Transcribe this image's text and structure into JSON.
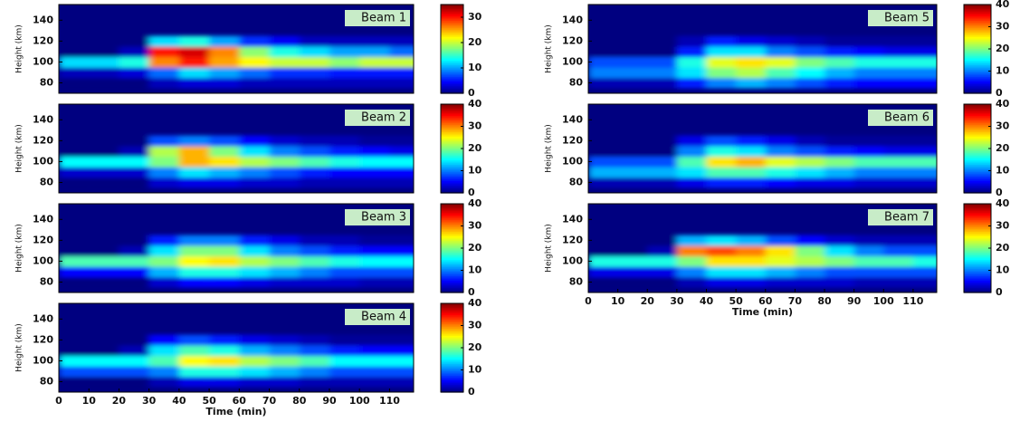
{
  "chart_data": [
    {
      "type": "contour",
      "title": "Beam 1",
      "ylabel": "Height (km)",
      "colormap": "jet",
      "x": [
        5,
        15,
        25,
        35,
        45,
        55,
        65,
        75,
        85,
        95,
        105,
        115
      ],
      "y": [
        80,
        90,
        100,
        110,
        120
      ],
      "z": [
        [
          0,
          0,
          0,
          2,
          3,
          3,
          2,
          2,
          2,
          2,
          2,
          2
        ],
        [
          2,
          2,
          3,
          8,
          12,
          10,
          8,
          6,
          6,
          5,
          5,
          5
        ],
        [
          12,
          12,
          14,
          26,
          30,
          25,
          22,
          20,
          20,
          18,
          20,
          20
        ],
        [
          0,
          0,
          2,
          30,
          32,
          26,
          18,
          14,
          12,
          10,
          10,
          8
        ],
        [
          0,
          0,
          0,
          12,
          14,
          10,
          6,
          4,
          2,
          2,
          2,
          2
        ]
      ],
      "xlim": [
        0,
        118
      ],
      "ylim": [
        70,
        155
      ],
      "yticks": [
        80,
        100,
        120,
        140
      ],
      "clim": [
        0,
        35
      ],
      "cticks": [
        0,
        10,
        20,
        30
      ]
    },
    {
      "type": "contour",
      "title": "Beam 2",
      "ylabel": "Height (km)",
      "colormap": "jet",
      "x": [
        5,
        15,
        25,
        35,
        45,
        55,
        65,
        75,
        85,
        95,
        105,
        115
      ],
      "y": [
        80,
        90,
        100,
        110,
        120
      ],
      "z": [
        [
          0,
          0,
          0,
          3,
          4,
          4,
          3,
          3,
          2,
          2,
          2,
          2
        ],
        [
          3,
          3,
          3,
          10,
          14,
          12,
          10,
          8,
          6,
          5,
          5,
          5
        ],
        [
          15,
          15,
          15,
          20,
          28,
          26,
          22,
          20,
          18,
          16,
          15,
          15
        ],
        [
          0,
          0,
          2,
          22,
          28,
          20,
          14,
          10,
          8,
          6,
          5,
          4
        ],
        [
          0,
          0,
          0,
          8,
          10,
          8,
          5,
          3,
          2,
          2,
          1,
          1
        ]
      ],
      "xlim": [
        0,
        118
      ],
      "ylim": [
        70,
        155
      ],
      "yticks": [
        80,
        100,
        120,
        140
      ],
      "clim": [
        0,
        40
      ],
      "cticks": [
        0,
        10,
        20,
        30,
        40
      ]
    },
    {
      "type": "contour",
      "title": "Beam 3",
      "ylabel": "Height (km)",
      "colormap": "jet",
      "x": [
        5,
        15,
        25,
        35,
        45,
        55,
        65,
        75,
        85,
        95,
        105,
        115
      ],
      "y": [
        80,
        90,
        100,
        110,
        120
      ],
      "z": [
        [
          0,
          0,
          0,
          3,
          5,
          5,
          4,
          3,
          3,
          3,
          2,
          2
        ],
        [
          5,
          5,
          5,
          12,
          16,
          16,
          14,
          12,
          10,
          8,
          8,
          8
        ],
        [
          18,
          18,
          18,
          20,
          25,
          26,
          22,
          20,
          18,
          16,
          15,
          15
        ],
        [
          0,
          0,
          2,
          14,
          20,
          20,
          14,
          10,
          8,
          6,
          5,
          5
        ],
        [
          0,
          0,
          0,
          6,
          10,
          10,
          6,
          4,
          2,
          2,
          1,
          1
        ]
      ],
      "xlim": [
        0,
        118
      ],
      "ylim": [
        70,
        155
      ],
      "yticks": [
        80,
        100,
        120,
        140
      ],
      "clim": [
        0,
        40
      ],
      "cticks": [
        0,
        10,
        20,
        30,
        40
      ]
    },
    {
      "type": "contour",
      "title": "Beam 4",
      "ylabel": "Height (km)",
      "xlabel": "Time (min)",
      "colormap": "jet",
      "x": [
        5,
        15,
        25,
        35,
        45,
        55,
        65,
        75,
        85,
        95,
        105,
        115
      ],
      "y": [
        80,
        90,
        100,
        110,
        120
      ],
      "z": [
        [
          0,
          0,
          0,
          2,
          4,
          4,
          3,
          3,
          2,
          2,
          2,
          2
        ],
        [
          8,
          8,
          8,
          10,
          16,
          16,
          14,
          12,
          10,
          8,
          8,
          8
        ],
        [
          15,
          15,
          15,
          18,
          25,
          26,
          22,
          20,
          18,
          15,
          15,
          15
        ],
        [
          0,
          0,
          2,
          14,
          18,
          16,
          12,
          10,
          8,
          6,
          5,
          5
        ],
        [
          0,
          0,
          0,
          5,
          8,
          6,
          4,
          3,
          2,
          1,
          1,
          1
        ]
      ],
      "xlim": [
        0,
        118
      ],
      "ylim": [
        70,
        155
      ],
      "xticks": [
        0,
        10,
        20,
        30,
        40,
        50,
        60,
        70,
        80,
        90,
        100,
        110
      ],
      "yticks": [
        80,
        100,
        120,
        140
      ],
      "clim": [
        0,
        40
      ],
      "cticks": [
        0,
        10,
        20,
        30,
        40
      ]
    },
    {
      "type": "contour",
      "title": "Beam 5",
      "ylabel": "Height (km)",
      "colormap": "jet",
      "x": [
        5,
        15,
        25,
        35,
        45,
        55,
        65,
        75,
        85,
        95,
        105,
        115
      ],
      "y": [
        80,
        90,
        100,
        110,
        120
      ],
      "z": [
        [
          2,
          2,
          2,
          6,
          10,
          12,
          10,
          8,
          6,
          5,
          5,
          5
        ],
        [
          10,
          10,
          10,
          14,
          20,
          22,
          18,
          15,
          12,
          10,
          10,
          10
        ],
        [
          8,
          8,
          8,
          16,
          24,
          26,
          24,
          20,
          18,
          16,
          16,
          16
        ],
        [
          0,
          0,
          0,
          6,
          14,
          14,
          10,
          8,
          6,
          5,
          4,
          4
        ],
        [
          0,
          0,
          0,
          2,
          6,
          4,
          3,
          2,
          1,
          1,
          1,
          1
        ]
      ],
      "xlim": [
        0,
        118
      ],
      "ylim": [
        70,
        155
      ],
      "yticks": [
        80,
        100,
        120,
        140
      ],
      "clim": [
        0,
        40
      ],
      "cticks": [
        0,
        10,
        20,
        30,
        40
      ]
    },
    {
      "type": "contour",
      "title": "Beam 6",
      "ylabel": "Height (km)",
      "colormap": "jet",
      "x": [
        5,
        15,
        25,
        35,
        45,
        55,
        65,
        75,
        85,
        95,
        105,
        115
      ],
      "y": [
        80,
        90,
        100,
        110,
        120
      ],
      "z": [
        [
          2,
          2,
          2,
          4,
          6,
          6,
          5,
          4,
          4,
          3,
          3,
          3
        ],
        [
          12,
          12,
          12,
          14,
          18,
          18,
          16,
          14,
          12,
          10,
          10,
          10
        ],
        [
          8,
          8,
          8,
          18,
          26,
          28,
          24,
          22,
          20,
          18,
          18,
          18
        ],
        [
          0,
          0,
          0,
          10,
          16,
          14,
          10,
          8,
          6,
          5,
          4,
          4
        ],
        [
          0,
          0,
          0,
          4,
          8,
          6,
          4,
          2,
          1,
          1,
          1,
          1
        ]
      ],
      "xlim": [
        0,
        118
      ],
      "ylim": [
        70,
        155
      ],
      "yticks": [
        80,
        100,
        120,
        140
      ],
      "clim": [
        0,
        40
      ],
      "cticks": [
        0,
        10,
        20,
        30,
        40
      ]
    },
    {
      "type": "contour",
      "title": "Beam 7",
      "ylabel": "Height (km)",
      "xlabel": "Time (min)",
      "colormap": "jet",
      "x": [
        5,
        15,
        25,
        35,
        45,
        55,
        65,
        75,
        85,
        95,
        105,
        115
      ],
      "y": [
        80,
        90,
        100,
        110,
        120
      ],
      "z": [
        [
          0,
          0,
          0,
          2,
          4,
          4,
          3,
          3,
          3,
          2,
          2,
          2
        ],
        [
          4,
          4,
          4,
          10,
          14,
          14,
          12,
          10,
          8,
          8,
          8,
          8
        ],
        [
          16,
          16,
          16,
          20,
          26,
          26,
          24,
          22,
          20,
          18,
          18,
          16
        ],
        [
          0,
          0,
          2,
          30,
          32,
          30,
          26,
          20,
          14,
          10,
          8,
          8
        ],
        [
          0,
          0,
          0,
          12,
          14,
          12,
          8,
          5,
          3,
          2,
          2,
          2
        ]
      ],
      "xlim": [
        0,
        118
      ],
      "ylim": [
        70,
        155
      ],
      "xticks": [
        0,
        10,
        20,
        30,
        40,
        50,
        60,
        70,
        80,
        90,
        100,
        110
      ],
      "yticks": [
        80,
        100,
        120,
        140
      ],
      "clim": [
        0,
        40
      ],
      "cticks": [
        0,
        10,
        20,
        30,
        40
      ]
    }
  ]
}
